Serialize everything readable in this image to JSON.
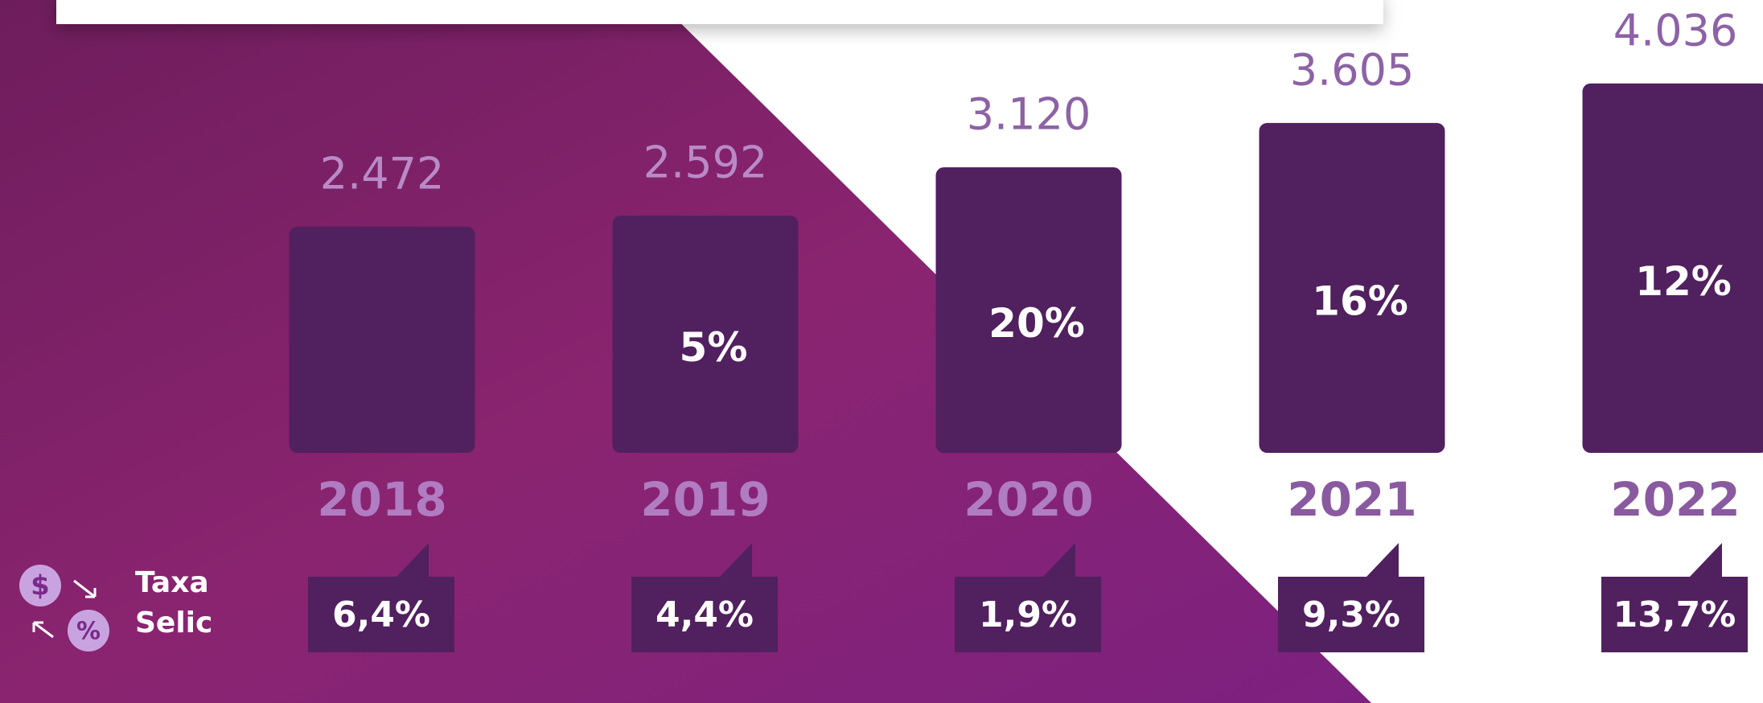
{
  "chart_data": {
    "type": "bar",
    "categories": [
      "2018",
      "2019",
      "2020",
      "2021",
      "2022"
    ],
    "values": [
      2472,
      2592,
      3120,
      3605,
      4036
    ],
    "value_labels": [
      "2.472",
      "2.592",
      "3.120",
      "3.605",
      "4.036"
    ],
    "bar_labels": [
      null,
      "5%",
      "20%",
      "16%",
      "12%"
    ],
    "color": "#51205f",
    "ylim": [
      0,
      4500
    ],
    "selic_label": "Taxa Selic",
    "selic_labels": [
      "6,4%",
      "4,4%",
      "1,9%",
      "9,3%",
      "13,7%"
    ]
  }
}
